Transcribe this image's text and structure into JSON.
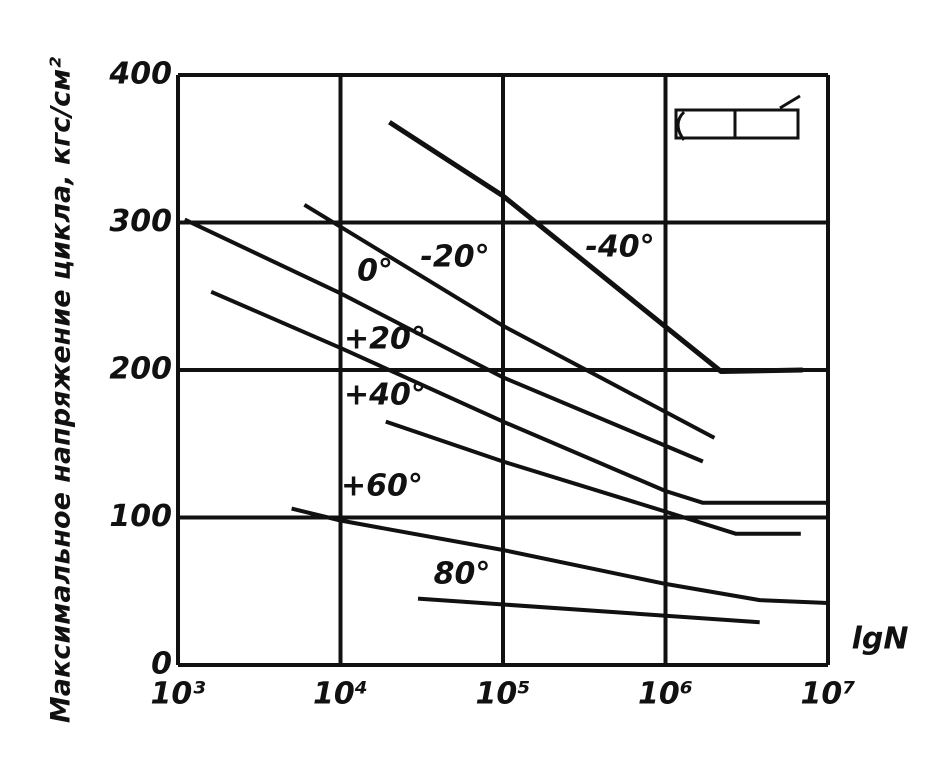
{
  "chart_data": {
    "type": "line",
    "y_label": "Максимальное напряжение цикла, кгс/см²",
    "x_label": "lgN",
    "xscale": "log",
    "grid": true,
    "color": "#111111",
    "xlim": [
      1000,
      10000000
    ],
    "xticks": [
      {
        "value": 1000,
        "label": "10³"
      },
      {
        "value": 10000,
        "label": "10⁴"
      },
      {
        "value": 100000,
        "label": "10⁵"
      },
      {
        "value": 1000000,
        "label": "10⁶"
      },
      {
        "value": 10000000,
        "label": "10⁷"
      }
    ],
    "ylim": [
      0,
      400
    ],
    "yticks": [
      0,
      100,
      200,
      300,
      400
    ],
    "series": [
      {
        "name": "-40°",
        "x": [
          20000,
          100000,
          2200000,
          7000000
        ],
        "values": [
          368,
          318,
          199,
          200
        ]
      },
      {
        "name": "-20°",
        "x": [
          6000,
          100000,
          2000000
        ],
        "values": [
          312,
          230,
          154
        ]
      },
      {
        "name": "0°",
        "x": [
          1100,
          10000,
          100000,
          1700000
        ],
        "values": [
          302,
          252,
          195,
          138
        ]
      },
      {
        "name": "+20°",
        "x": [
          1600,
          10000,
          100000,
          1000000,
          1700000,
          10000000
        ],
        "values": [
          253,
          215,
          165,
          118,
          110,
          110
        ]
      },
      {
        "name": "+40°",
        "x": [
          19000,
          100000,
          1000000,
          2700000,
          6800000
        ],
        "values": [
          165,
          138,
          104,
          89,
          89
        ]
      },
      {
        "name": "+60°",
        "x": [
          5000,
          10000,
          100000,
          1000000,
          3800000,
          10000000
        ],
        "values": [
          106,
          98,
          78,
          55,
          44,
          42
        ]
      },
      {
        "name": "80°",
        "x": [
          30000,
          3800000
        ],
        "values": [
          45,
          29
        ]
      }
    ]
  }
}
